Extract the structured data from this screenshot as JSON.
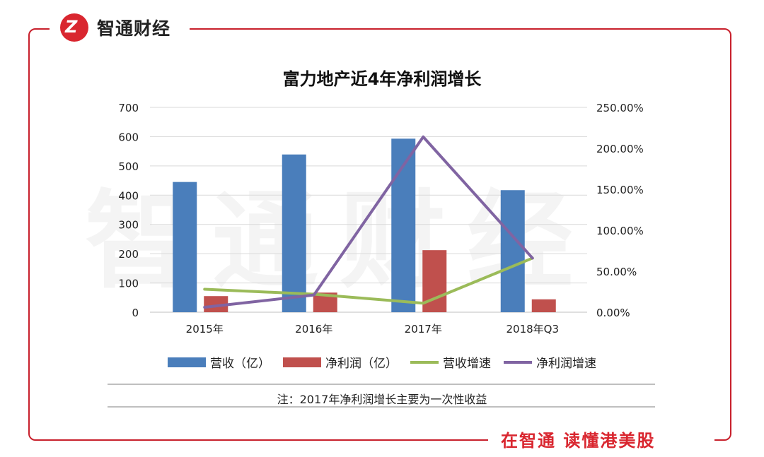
{
  "brand": {
    "name": "智通财经",
    "logo_mark": "Z",
    "slogan": "在智通 读懂港美股"
  },
  "watermark": "智通财经",
  "note": "注：2017年净利润增长主要为一次性收益",
  "chart_data": {
    "type": "bar",
    "title": "富力地产近4年净利润增长",
    "categories": [
      "2015年",
      "2016年",
      "2017年",
      "2018年Q3"
    ],
    "series": [
      {
        "name": "营收（亿）",
        "kind": "bar",
        "axis": "left",
        "color": "#4a7ebb",
        "values": [
          445,
          539,
          593,
          417
        ]
      },
      {
        "name": "净利润（亿）",
        "kind": "bar",
        "axis": "left",
        "color": "#c0504d",
        "values": [
          55,
          67,
          212,
          44
        ]
      },
      {
        "name": "营收增速",
        "kind": "line",
        "axis": "right",
        "color": "#9bbb59",
        "values": [
          0.28,
          0.22,
          0.11,
          0.66
        ]
      },
      {
        "name": "净利润增速",
        "kind": "line",
        "axis": "right",
        "color": "#8064a2",
        "values": [
          0.06,
          0.21,
          2.14,
          0.66
        ]
      }
    ],
    "y_left": {
      "ylim": [
        0,
        700
      ],
      "ticks": [
        "0",
        "100",
        "200",
        "300",
        "400",
        "500",
        "600",
        "700"
      ]
    },
    "y_right": {
      "ylim": [
        0,
        2.5
      ],
      "ticks": [
        "0.00%",
        "50.00%",
        "100.00%",
        "150.00%",
        "200.00%",
        "250.00%"
      ]
    },
    "grid": true,
    "legend_position": "bottom"
  }
}
